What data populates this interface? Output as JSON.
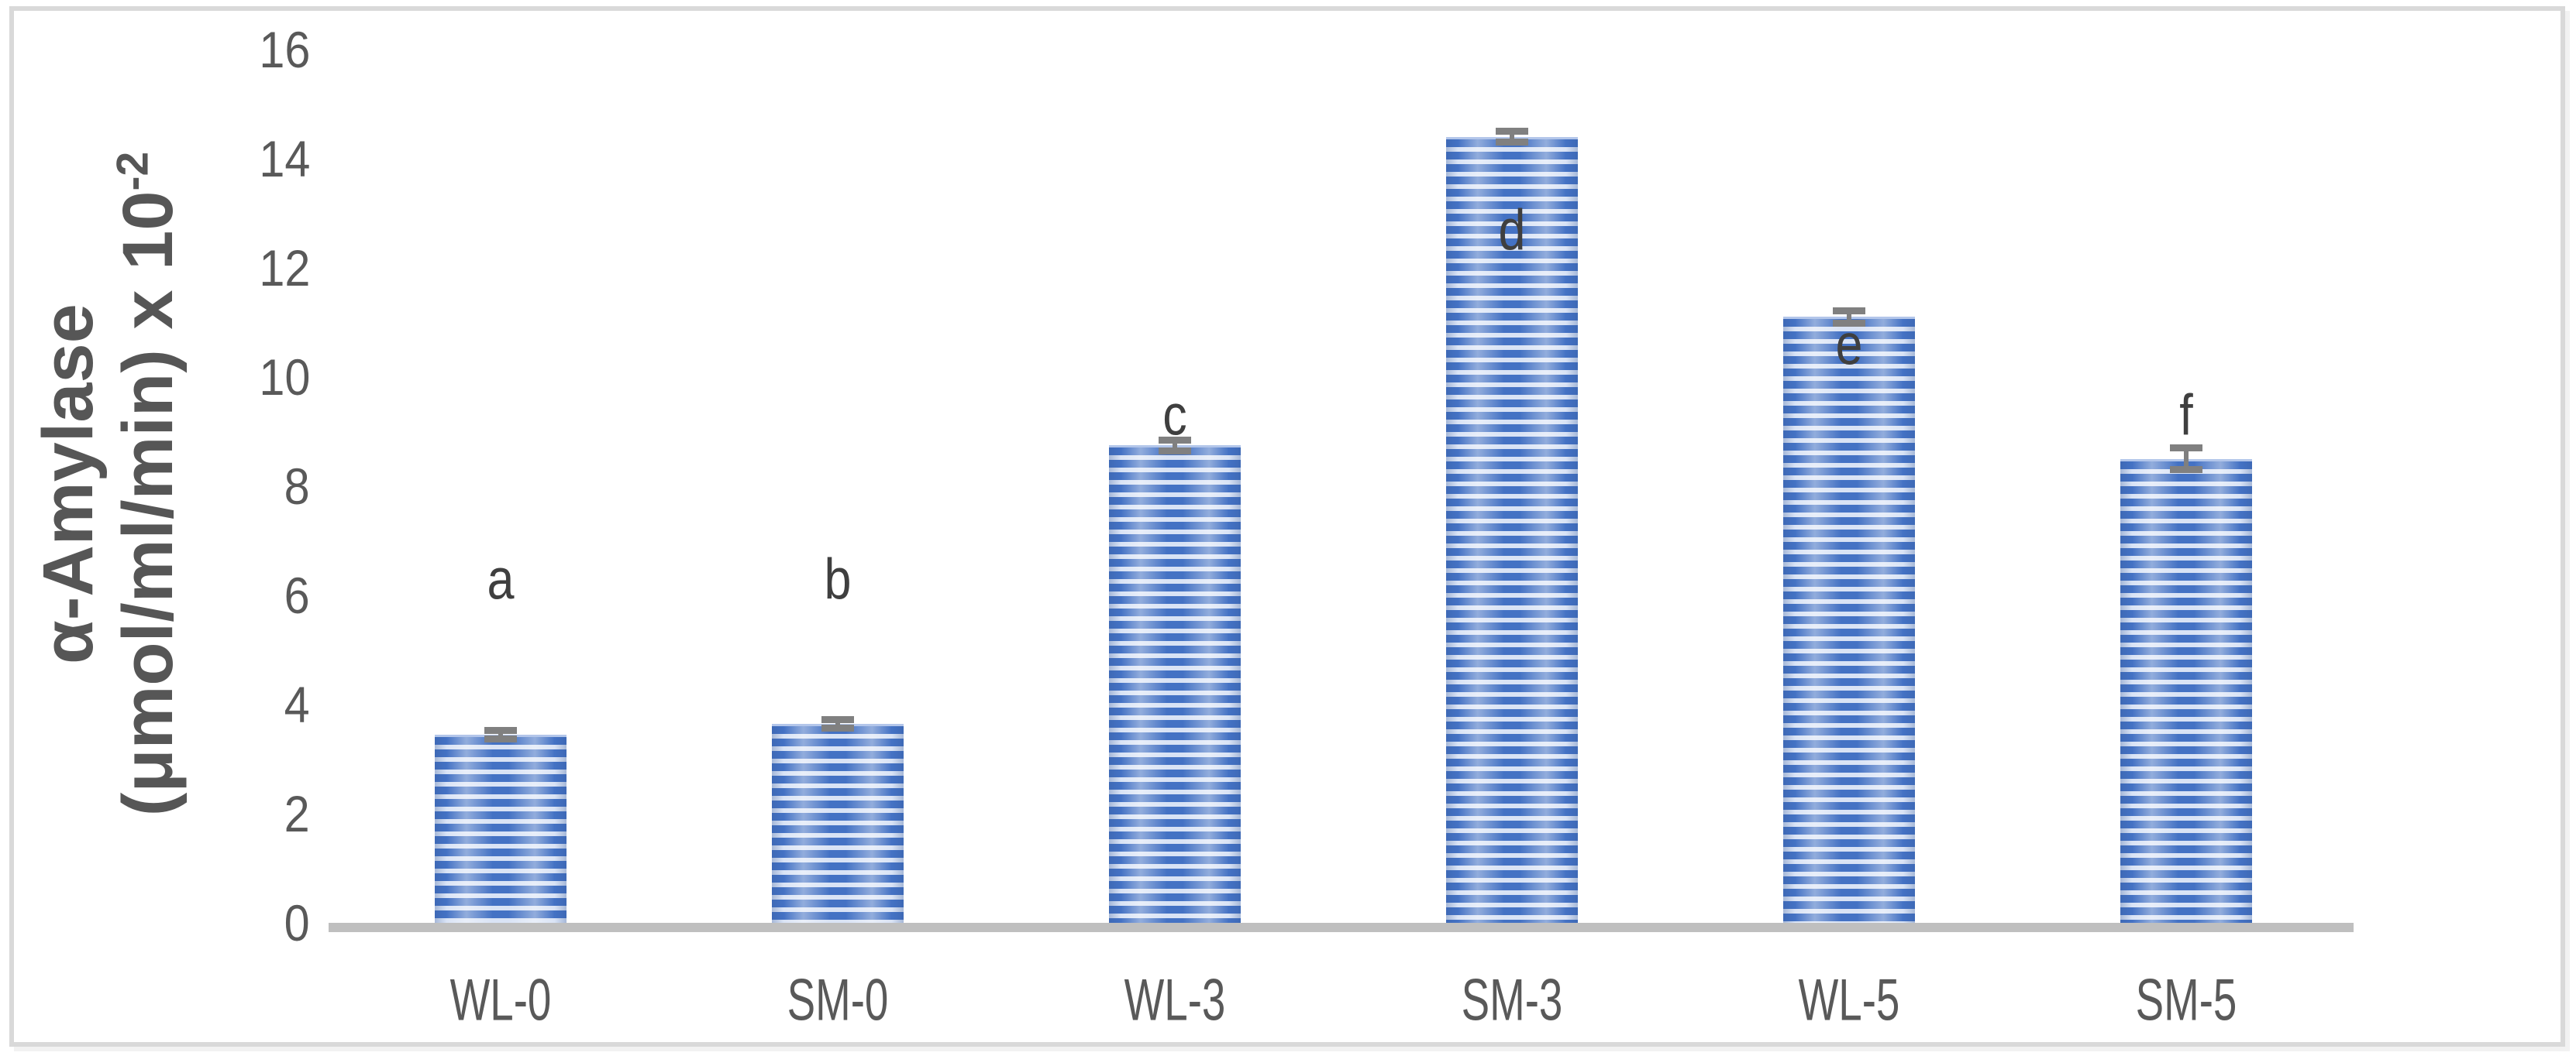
{
  "chart_data": {
    "type": "bar",
    "title": "",
    "ylabel_line1": "α-Amylase",
    "ylabel_line2_prefix": "(μmol/ml/min) x 10",
    "ylabel_superscript": "-2",
    "xlabel": "",
    "categories": [
      "WL-0",
      "SM-0",
      "WL-3",
      "SM-3",
      "WL-5",
      "SM-5"
    ],
    "values": [
      3.45,
      3.65,
      8.75,
      14.4,
      11.1,
      8.5
    ],
    "errors": [
      0.08,
      0.08,
      0.1,
      0.1,
      0.11,
      0.2
    ],
    "bar_letters": [
      "a",
      "b",
      "c",
      "d",
      "e",
      "f"
    ],
    "letter_y_values": [
      6.3,
      6.3,
      9.3,
      12.7,
      10.6,
      9.3
    ],
    "y_ticks": [
      0,
      2,
      4,
      6,
      8,
      10,
      12,
      14,
      16
    ],
    "ylim": [
      0,
      16
    ],
    "grid": false,
    "legend": null,
    "colors": {
      "bar_stripe": "#4472c4",
      "bar_stripe_light": "#d9e3f5",
      "axis_line": "#bfbfbf",
      "error_bar": "#7f7f7f",
      "tick_text": "#595959",
      "category_text": "#595959",
      "letter_text": "#3f3f3f",
      "ylabel_text": "#565656",
      "frame_border": "#d9d9d9"
    }
  }
}
